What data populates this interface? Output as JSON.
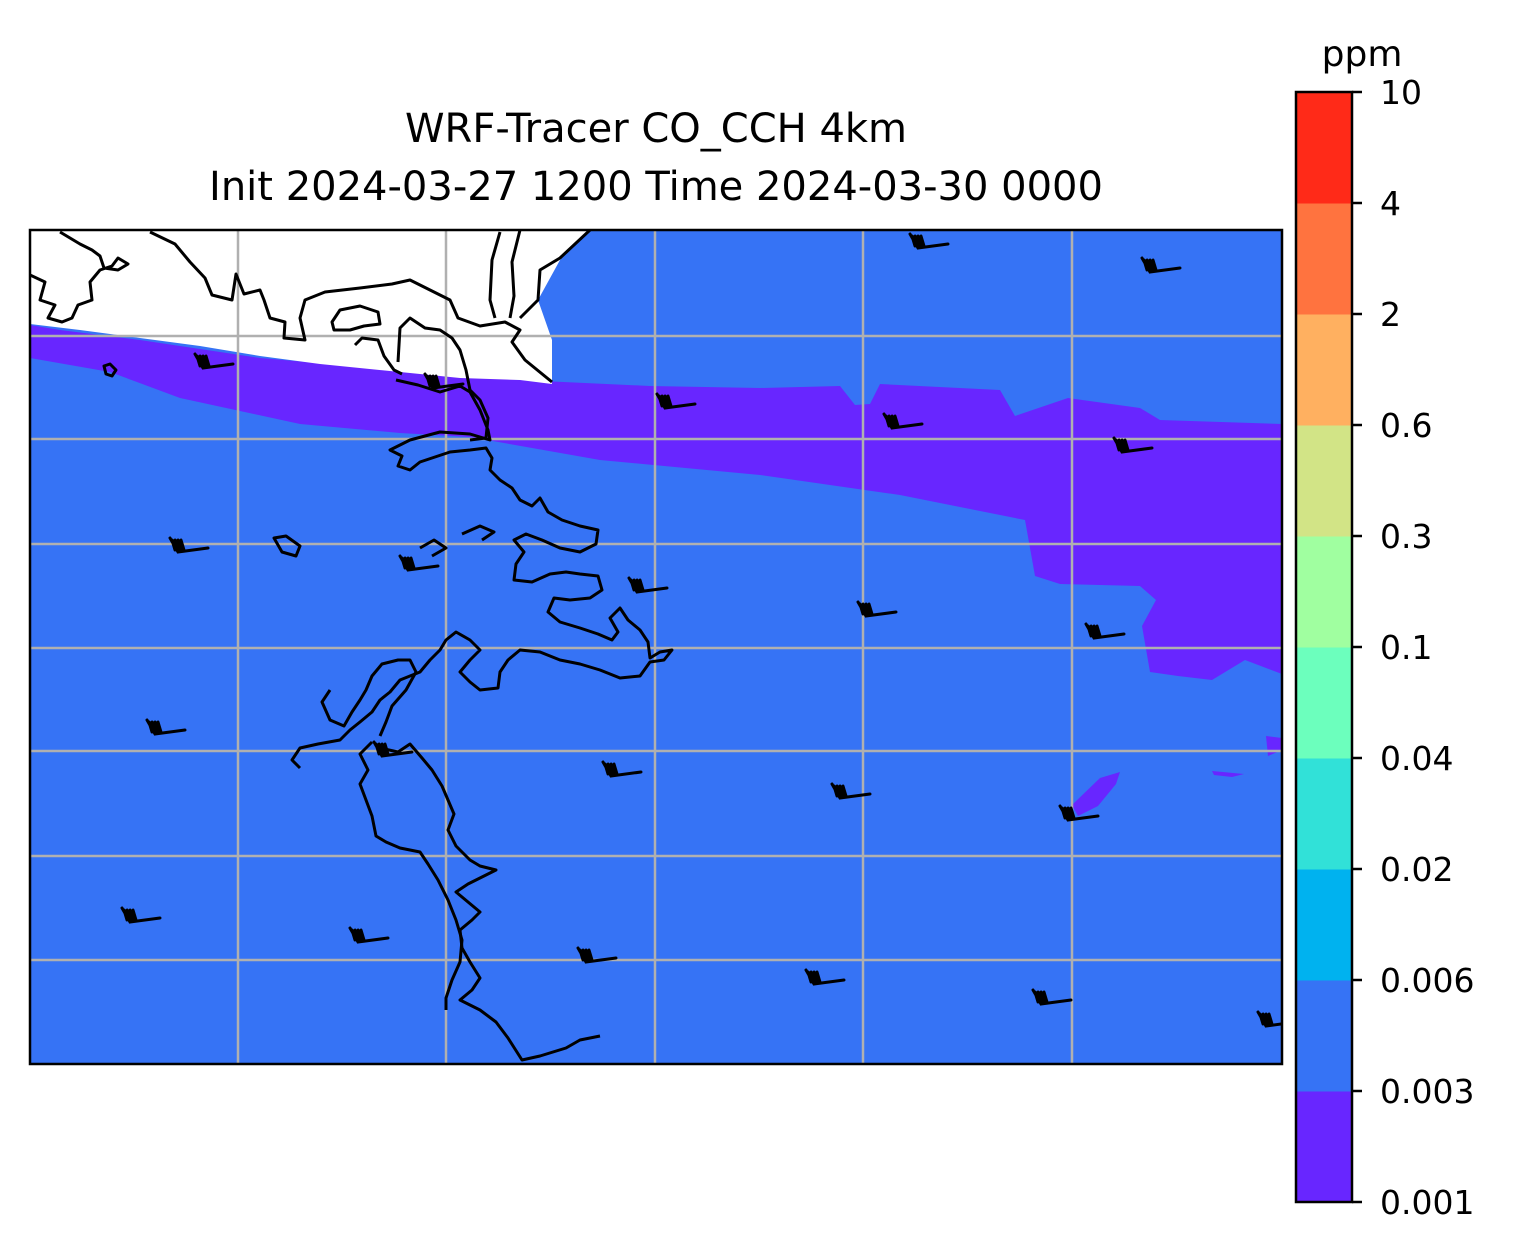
{
  "title": {
    "line1": "WRF-Tracer CO_CCH 4km",
    "line2": "Init 2024-03-27 1200 Time 2024-03-30 0000"
  },
  "colorbar": {
    "unit": "ppm",
    "levels": [
      "0.001",
      "0.003",
      "0.006",
      "0.02",
      "0.04",
      "0.1",
      "0.3",
      "0.6",
      "2",
      "4",
      "10"
    ],
    "colors": [
      "#6826FF",
      "#3673F5",
      "#00B2EF",
      "#31E1D8",
      "#6CFFBD",
      "#A0FFA0",
      "#D2E486",
      "#FFB060",
      "#FF733F",
      "#FF2A18"
    ]
  },
  "map": {
    "land_color": "#ffffff",
    "grid": true,
    "grid_color": "#b0b0b0",
    "coastline_color": "#000000",
    "wind_barbs": true,
    "filled_levels_present": [
      "0.001-0.003",
      "0.003-0.006"
    ]
  }
}
